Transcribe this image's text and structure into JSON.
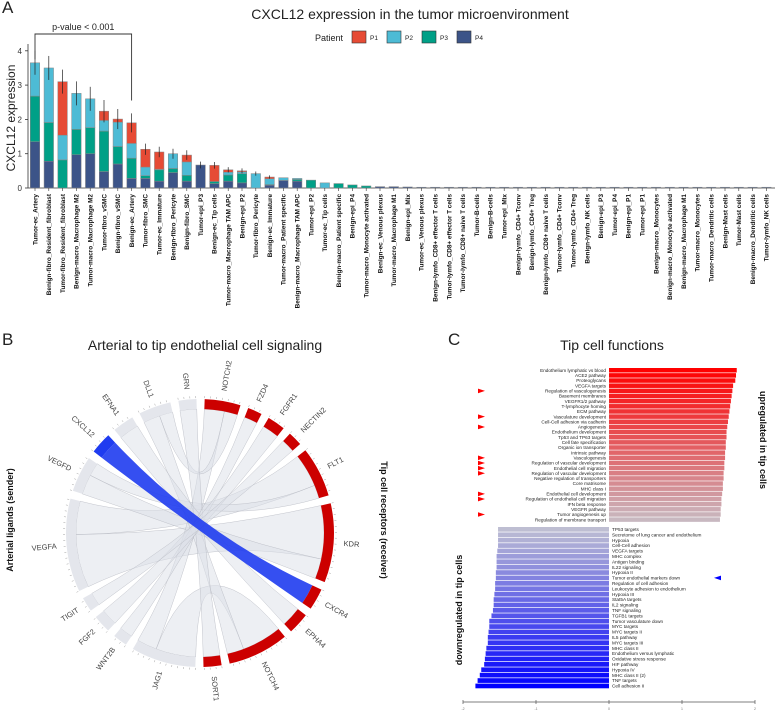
{
  "panel_letters": {
    "a": "A",
    "b": "B",
    "c": "C"
  },
  "chart_data": [
    {
      "type": "bar",
      "stacked": true,
      "title": "CXCL12 expression in the tumor microenvironment",
      "xlabel": "",
      "ylabel": "CXCL12 expression",
      "ylim": [
        0,
        4.2
      ],
      "yticks": [
        "0",
        "1",
        "2",
        "3",
        "4"
      ],
      "annotation": "p-value < 0.001",
      "annotation_span": [
        "Tumor-ec_Artery",
        "Benign-ec_Artery"
      ],
      "legend": {
        "title": "Patient",
        "placement": "top-right",
        "entries": [
          "P1",
          "P2",
          "P3",
          "P4"
        ]
      },
      "colors": {
        "P1": "#E64B35",
        "P2": "#4DBBD5",
        "P3": "#00A087",
        "P4": "#3C5488"
      },
      "categories": [
        "Tumor-ec_Artery",
        "Benign-fibro_Resident_fibroblast",
        "Tumor-fibro_Resident_fibroblast",
        "Benign-macro_Macrophage M2",
        "Tumor-macro_Macrophage M2",
        "Tumor-fibro_vSMC",
        "Benign-fibro_vSMC",
        "Benign-ec_Artery",
        "Tumor-fibro_SMC",
        "Tumor-ec_Immature",
        "Benign-fibro_Pericyte",
        "Benign-fibro_SMC",
        "Tumor-epi_P3",
        "Benign-ec_Tip cells",
        "Tumor-macro_Macrophage TAM APC",
        "Benign-epi_P2",
        "Tumor-fibro_Pericyte",
        "Benign-ec_Immature",
        "Tumor-macro_Patient specific",
        "Benign-macro_Macrophage TAM APC",
        "Tumor-epi_P2",
        "Tumor-ec_Tip cells",
        "Benign-macro_Patient specific",
        "Benign-epi_P4",
        "Tumor-macro_Monocyte activated",
        "Benign-ec_Venous plexus",
        "Tumor-macro_Macrophage M1",
        "Benign-epi_Mix",
        "Tumor-ec_Venous plexus",
        "Benign-lymfo_CD8+ effector T cells",
        "Tumor-lymfo_CD8+ effector T cells",
        "Tumor-lymfo_CD8+ naive T cells",
        "Tumor-B-cells",
        "Benign-B-cells",
        "Tumor-epi_Mix",
        "Benign-lymfo_CD4+ Tconv",
        "Benign-lymfo_CD4+ Treg",
        "Benign-lymfo_CD8+ naive T cells",
        "Tumor-lymfo_CD4+ Tconv",
        "Tumor-lymfo_CD4+ Treg",
        "Benign-lymfo_NK cells",
        "Benign-epi_P3",
        "Tumor-epi_P4",
        "Benign-epi_P1",
        "Tumor-epi_P1",
        "Benign-macro_Monocytes",
        "Benign-macro_Monocyte activated",
        "Benign-macro_Macrophage M1",
        "Tumor-macro_Monocytes",
        "Tumor-macro_Dendritic cells",
        "Benign-Mast cells",
        "Tumor-Mast cells",
        "Benign-macro_Dendritic cells",
        "Tumor-lymfo_NK cells"
      ],
      "series": [
        {
          "name": "P4",
          "values": [
            1.35,
            0.78,
            0,
            0.97,
            1.0,
            0.48,
            0.7,
            0.28,
            0.28,
            0.2,
            0.45,
            0.2,
            0.67,
            0.13,
            0.2,
            0.15,
            0,
            0.08,
            0.22,
            0.2,
            0,
            0,
            0,
            0,
            0,
            0.04,
            0.04,
            0.03,
            0.02,
            0.015,
            0.01,
            0.01,
            0.01,
            0.01,
            0.01,
            0.01,
            0.01,
            0.01,
            0.01,
            0.01,
            0.01,
            0.01,
            0.01,
            0.01,
            0.01,
            0.01,
            0.01,
            0.01,
            0.01,
            0.01,
            0.01,
            0.01,
            0.01,
            0.01
          ]
        },
        {
          "name": "P3",
          "values": [
            1.33,
            1.13,
            0.82,
            0.74,
            0.76,
            1.18,
            0.51,
            0.59,
            0.08,
            0.33,
            0.12,
            0.17,
            0,
            0.06,
            0.18,
            0.27,
            0,
            0.02,
            0,
            0.05,
            0.23,
            0,
            0.13,
            0.09,
            0.06,
            0,
            0,
            0,
            0,
            0,
            0,
            0,
            0,
            0,
            0,
            0,
            0,
            0,
            0,
            0,
            0,
            0,
            0,
            0,
            0,
            0,
            0,
            0,
            0,
            0,
            0,
            0,
            0,
            0
          ]
        },
        {
          "name": "P2",
          "values": [
            0.97,
            1.59,
            0.72,
            1.05,
            0.84,
            0.31,
            0.71,
            0.43,
            0.25,
            0.02,
            0.43,
            0.39,
            0,
            0,
            0.08,
            0.05,
            0.42,
            0.17,
            0.08,
            0.03,
            0,
            0.15,
            0,
            0,
            0,
            0,
            0,
            0,
            0,
            0,
            0,
            0,
            0,
            0,
            0,
            0,
            0,
            0,
            0,
            0,
            0,
            0,
            0,
            0,
            0,
            0,
            0,
            0,
            0,
            0,
            0,
            0,
            0,
            0
          ]
        },
        {
          "name": "P1",
          "values": [
            0,
            0,
            1.56,
            0,
            0,
            0.27,
            0.09,
            0.6,
            0.52,
            0.5,
            0,
            0.2,
            0,
            0.47,
            0.07,
            0.03,
            0,
            0.05,
            0,
            0,
            0,
            0,
            0,
            0,
            0,
            0,
            0,
            0,
            0,
            0,
            0,
            0,
            0,
            0,
            0,
            0,
            0,
            0,
            0,
            0,
            0,
            0,
            0,
            0,
            0,
            0,
            0,
            0,
            0,
            0,
            0,
            0,
            0,
            0
          ]
        }
      ]
    },
    {
      "type": "chord",
      "title": "Arterial to tip endothelial cell signaling",
      "left_label": "Arterial ligands (sender)",
      "right_label": "Tip cell receptors (receiver)",
      "colors": {
        "ligand": "#E4E6EC",
        "receptor": "#CC0000",
        "highlight": "#1F3CF0",
        "link": "#DCDFE8"
      },
      "sectors": [
        {
          "name": "NOTCH2",
          "group": "receiver",
          "value": 1.0
        },
        {
          "name": "FZD4",
          "group": "receiver",
          "value": 0.4
        },
        {
          "name": "FGFR1",
          "group": "receiver",
          "value": 0.5
        },
        {
          "name": "NECTIN2",
          "group": "receiver",
          "value": 0.4
        },
        {
          "name": "FLT1",
          "group": "receiver",
          "value": 1.4
        },
        {
          "name": "KDR",
          "group": "receiver",
          "value": 2.2
        },
        {
          "name": "CXCR4",
          "group": "receiver",
          "value": 0.6
        },
        {
          "name": "EPHA4",
          "group": "receiver",
          "value": 0.6
        },
        {
          "name": "NOTCH4",
          "group": "receiver",
          "value": 1.7
        },
        {
          "name": "SORT1",
          "group": "receiver",
          "value": 0.5
        },
        {
          "name": "JAG1",
          "group": "ligand",
          "value": 1.8
        },
        {
          "name": "WNT2B",
          "group": "ligand",
          "value": 0.4
        },
        {
          "name": "FGF2",
          "group": "ligand",
          "value": 0.5
        },
        {
          "name": "TIGIT",
          "group": "ligand",
          "value": 0.4
        },
        {
          "name": "VEGFA",
          "group": "ligand",
          "value": 2.6
        },
        {
          "name": "VEGFD",
          "group": "ligand",
          "value": 1.0
        },
        {
          "name": "CXCL12",
          "group": "ligand",
          "value": 0.6,
          "highlight": true
        },
        {
          "name": "EFNA1",
          "group": "ligand",
          "value": 0.6
        },
        {
          "name": "DLL1",
          "group": "ligand",
          "value": 0.9
        },
        {
          "name": "GRN",
          "group": "ligand",
          "value": 0.5
        }
      ],
      "links": [
        {
          "source": "VEGFA",
          "target": "KDR",
          "value": 1.6
        },
        {
          "source": "VEGFA",
          "target": "FLT1",
          "value": 1.0
        },
        {
          "source": "VEGFD",
          "target": "KDR",
          "value": 0.6
        },
        {
          "source": "VEGFD",
          "target": "FLT1",
          "value": 0.4
        },
        {
          "source": "JAG1",
          "target": "NOTCH4",
          "value": 1.2
        },
        {
          "source": "JAG1",
          "target": "NOTCH2",
          "value": 0.6
        },
        {
          "source": "DLL1",
          "target": "NOTCH4",
          "value": 0.5
        },
        {
          "source": "DLL1",
          "target": "NOTCH2",
          "value": 0.4
        },
        {
          "source": "GRN",
          "target": "SORT1",
          "value": 0.5
        },
        {
          "source": "EFNA1",
          "target": "EPHA4",
          "value": 0.6
        },
        {
          "source": "WNT2B",
          "target": "FZD4",
          "value": 0.4
        },
        {
          "source": "FGF2",
          "target": "FGFR1",
          "value": 0.5
        },
        {
          "source": "TIGIT",
          "target": "NECTIN2",
          "value": 0.4
        },
        {
          "source": "CXCL12",
          "target": "CXCR4",
          "value": 0.6,
          "highlight": true
        }
      ]
    },
    {
      "type": "bar",
      "orientation": "horizontal",
      "title": "Tip cell functions",
      "up_label": "upregulated in tip cells",
      "down_label": "downregulated in tip cells",
      "xlim": [
        -2,
        2
      ],
      "xticks": [
        "-2",
        "-1",
        "0",
        "1",
        "2"
      ],
      "colors": {
        "up_start": "#FF0000",
        "up_end": "#C8B8C0",
        "down_start": "#BEBED2",
        "down_end": "#0000FF",
        "marker_up": "#FF0000",
        "marker_down": "#0000FF"
      },
      "upregulated": [
        {
          "term": "Endothelium lymphatic vs blood",
          "value": 1.75
        },
        {
          "term": "ACE2 pathway",
          "value": 1.74
        },
        {
          "term": "Proteoglycans",
          "value": 1.73
        },
        {
          "term": "VEGFA targets",
          "value": 1.7
        },
        {
          "term": "Regulation of vasculogenesis",
          "value": 1.69,
          "marked": true
        },
        {
          "term": "Basement membranes",
          "value": 1.68
        },
        {
          "term": "VEGFR1/2 pathway",
          "value": 1.67
        },
        {
          "term": "T-lymphocyte homing",
          "value": 1.66
        },
        {
          "term": "ECM pathway",
          "value": 1.65
        },
        {
          "term": "Vasculature development",
          "value": 1.64,
          "marked": true
        },
        {
          "term": "Cell-Cell adhesion via cadherin",
          "value": 1.63
        },
        {
          "term": "Angiogenesis",
          "value": 1.62,
          "marked": true
        },
        {
          "term": "Endothelium development",
          "value": 1.61
        },
        {
          "term": "Tp53 and TP63 targets",
          "value": 1.61
        },
        {
          "term": "Cell fate specification",
          "value": 1.6
        },
        {
          "term": "Organic ion transporter",
          "value": 1.6
        },
        {
          "term": "Intrinsic pathway",
          "value": 1.59
        },
        {
          "term": "Vasculogenesis",
          "value": 1.59,
          "marked": true
        },
        {
          "term": "Regulation of vascular development",
          "value": 1.58,
          "marked": true
        },
        {
          "term": "Endothelial cell migration",
          "value": 1.58,
          "marked": true
        },
        {
          "term": "Regulation of vascular development",
          "value": 1.57,
          "marked": true
        },
        {
          "term": "Negative regulation of transporters",
          "value": 1.57
        },
        {
          "term": "Core matrisome",
          "value": 1.56
        },
        {
          "term": "MHC class I",
          "value": 1.56
        },
        {
          "term": "Endothelial cell development",
          "value": 1.55,
          "marked": true
        },
        {
          "term": "Regulation of endothelial cell migration",
          "value": 1.54,
          "marked": true
        },
        {
          "term": "IFN beta response",
          "value": 1.54
        },
        {
          "term": "VEGFR pathway",
          "value": 1.53
        },
        {
          "term": "Tumor angiogenesis up",
          "value": 1.53,
          "marked": true
        },
        {
          "term": "Regulation of membrane transport",
          "value": 1.52
        }
      ],
      "downregulated": [
        {
          "term": "TP53 targets",
          "value": -1.52
        },
        {
          "term": "Secretome of lung cancer and endothelium",
          "value": -1.52
        },
        {
          "term": "Hypoxia",
          "value": -1.52
        },
        {
          "term": "Cell-Cell adhesion",
          "value": -1.52
        },
        {
          "term": "VEGFA targets",
          "value": -1.53
        },
        {
          "term": "MHC complex",
          "value": -1.54
        },
        {
          "term": "Antigen binding",
          "value": -1.54
        },
        {
          "term": "IL22 signaling",
          "value": -1.54
        },
        {
          "term": "Hypoxia II",
          "value": -1.55
        },
        {
          "term": "Tumor endothelial markers down",
          "value": -1.55,
          "marked": true
        },
        {
          "term": "Regulation of cell adhesion",
          "value": -1.56
        },
        {
          "term": "Leukocyte adhesion to endothelium",
          "value": -1.56
        },
        {
          "term": "Hypoxia III",
          "value": -1.57
        },
        {
          "term": "Stat5A targets",
          "value": -1.58
        },
        {
          "term": "IL2 signaling",
          "value": -1.58
        },
        {
          "term": "TNF signaling",
          "value": -1.59
        },
        {
          "term": "TGFB1 targets",
          "value": -1.61
        },
        {
          "term": "Tumor vasculature down",
          "value": -1.64
        },
        {
          "term": "MYC targets",
          "value": -1.64
        },
        {
          "term": "MYC targets II",
          "value": -1.65
        },
        {
          "term": "IL5 pathway",
          "value": -1.66
        },
        {
          "term": "MYC targets III",
          "value": -1.66
        },
        {
          "term": "MHC class II",
          "value": -1.68
        },
        {
          "term": "Endothelium versus lymphatic",
          "value": -1.69
        },
        {
          "term": "Oxidative stress response",
          "value": -1.7
        },
        {
          "term": "HIF pathway",
          "value": -1.71
        },
        {
          "term": "Hypoxia IV",
          "value": -1.75
        },
        {
          "term": "MHC class II (2)",
          "value": -1.77
        },
        {
          "term": "TNF targets",
          "value": -1.8
        },
        {
          "term": "Cell adhesion II",
          "value": -1.83
        }
      ]
    }
  ]
}
